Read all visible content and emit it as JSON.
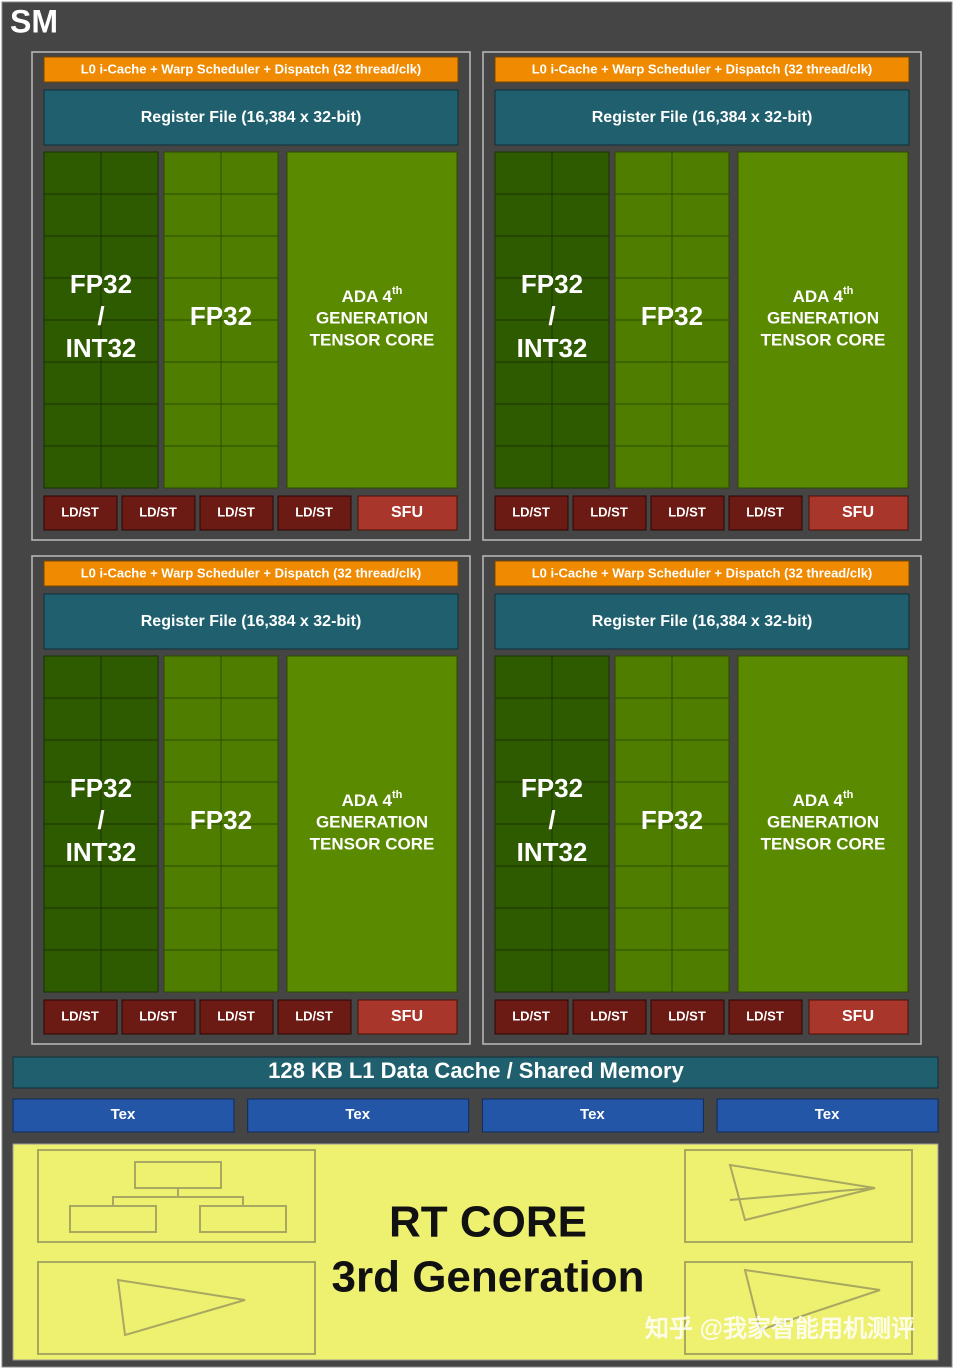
{
  "title": "SM",
  "partitions": [
    {
      "dispatch": "L0 i-Cache + Warp Scheduler + Dispatch (32 thread/clk)",
      "register_file": "Register File (16,384 x 32-bit)",
      "fp32_int32": [
        "FP32",
        "/",
        "INT32"
      ],
      "fp32": "FP32",
      "tensor_core": {
        "line1": "ADA 4",
        "sup": "th",
        "line2": "GENERATION",
        "line3": "TENSOR CORE"
      },
      "ldst": [
        "LD/ST",
        "LD/ST",
        "LD/ST",
        "LD/ST"
      ],
      "sfu": "SFU"
    },
    {
      "dispatch": "L0 i-Cache + Warp Scheduler + Dispatch (32 thread/clk)",
      "register_file": "Register File (16,384 x 32-bit)",
      "fp32_int32": [
        "FP32",
        "/",
        "INT32"
      ],
      "fp32": "FP32",
      "tensor_core": {
        "line1": "ADA 4",
        "sup": "th",
        "line2": "GENERATION",
        "line3": "TENSOR CORE"
      },
      "ldst": [
        "LD/ST",
        "LD/ST",
        "LD/ST",
        "LD/ST"
      ],
      "sfu": "SFU"
    },
    {
      "dispatch": "L0 i-Cache + Warp Scheduler + Dispatch (32 thread/clk)",
      "register_file": "Register File (16,384 x 32-bit)",
      "fp32_int32": [
        "FP32",
        "/",
        "INT32"
      ],
      "fp32": "FP32",
      "tensor_core": {
        "line1": "ADA 4",
        "sup": "th",
        "line2": "GENERATION",
        "line3": "TENSOR CORE"
      },
      "ldst": [
        "LD/ST",
        "LD/ST",
        "LD/ST",
        "LD/ST"
      ],
      "sfu": "SFU"
    },
    {
      "dispatch": "L0 i-Cache + Warp Scheduler + Dispatch (32 thread/clk)",
      "register_file": "Register File (16,384 x 32-bit)",
      "fp32_int32": [
        "FP32",
        "/",
        "INT32"
      ],
      "fp32": "FP32",
      "tensor_core": {
        "line1": "ADA 4",
        "sup": "th",
        "line2": "GENERATION",
        "line3": "TENSOR CORE"
      },
      "ldst": [
        "LD/ST",
        "LD/ST",
        "LD/ST",
        "LD/ST"
      ],
      "sfu": "SFU"
    }
  ],
  "l1_cache": "128 KB L1 Data Cache / Shared Memory",
  "tex": [
    "Tex",
    "Tex",
    "Tex",
    "Tex"
  ],
  "rt_core": {
    "line1": "RT CORE",
    "line2": "3rd Generation"
  },
  "watermark": "知乎 @我家智能用机测评"
}
